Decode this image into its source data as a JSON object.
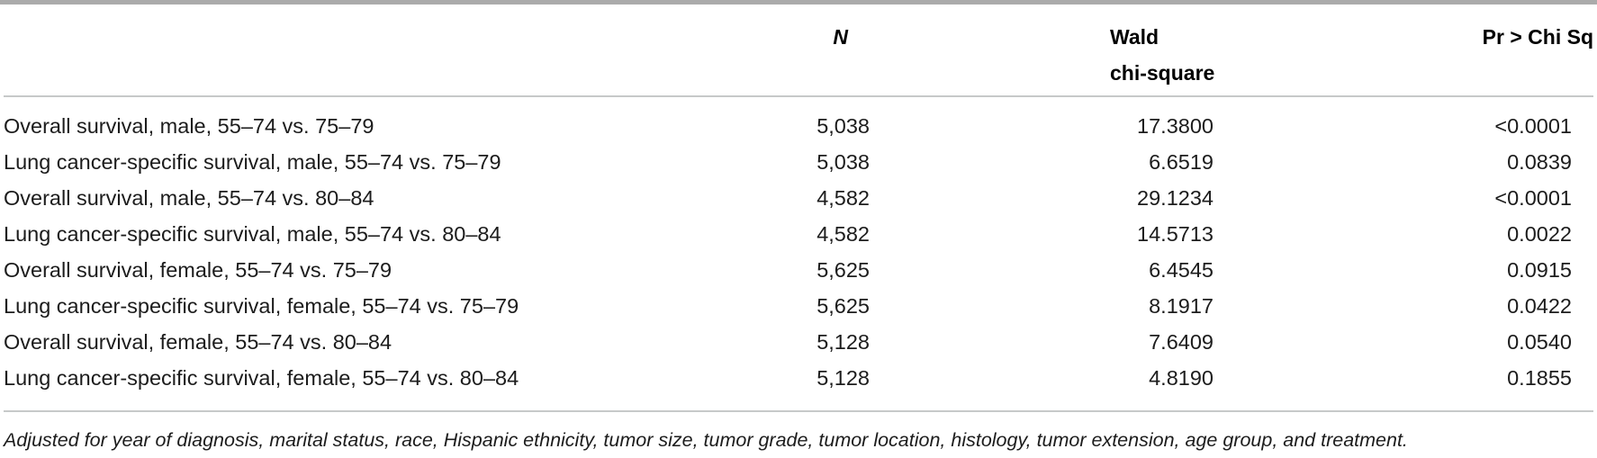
{
  "table": {
    "header": {
      "label": "",
      "n": "N",
      "wald_line1": "Wald",
      "wald_line2": "chi-square",
      "pr": "Pr > Chi Sq"
    },
    "rows": [
      {
        "label": "Overall survival, male, 55–74 vs. 75–79",
        "n": "5,038",
        "wald": "17.3800",
        "pr": "<0.0001"
      },
      {
        "label": "Lung cancer-specific survival, male, 55–74 vs. 75–79",
        "n": "5,038",
        "wald": "6.6519",
        "pr": "0.0839"
      },
      {
        "label": "Overall survival, male, 55–74 vs. 80–84",
        "n": "4,582",
        "wald": "29.1234",
        "pr": "<0.0001"
      },
      {
        "label": "Lung cancer-specific survival, male, 55–74 vs. 80–84",
        "n": "4,582",
        "wald": "14.5713",
        "pr": "0.0022"
      },
      {
        "label": "Overall survival, female, 55–74 vs. 75–79",
        "n": "5,625",
        "wald": "6.4545",
        "pr": "0.0915"
      },
      {
        "label": "Lung cancer-specific survival, female, 55–74 vs. 75–79",
        "n": "5,625",
        "wald": "8.1917",
        "pr": "0.0422"
      },
      {
        "label": "Overall survival, female, 55–74 vs. 80–84",
        "n": "5,128",
        "wald": "7.6409",
        "pr": "0.0540"
      },
      {
        "label": "Lung cancer-specific survival, female, 55–74 vs. 80–84",
        "n": "5,128",
        "wald": "4.8190",
        "pr": "0.1855"
      }
    ],
    "footnote": "Adjusted for year of diagnosis, marital status, race, Hispanic ethnicity, tumor size, tumor grade, tumor location, histology, tumor extension, age group, and treatment."
  },
  "colors": {
    "rule_heavy": "#ababab",
    "rule_light": "#c7c9c9",
    "text": "#1c1c1c",
    "header_text": "#000000"
  }
}
